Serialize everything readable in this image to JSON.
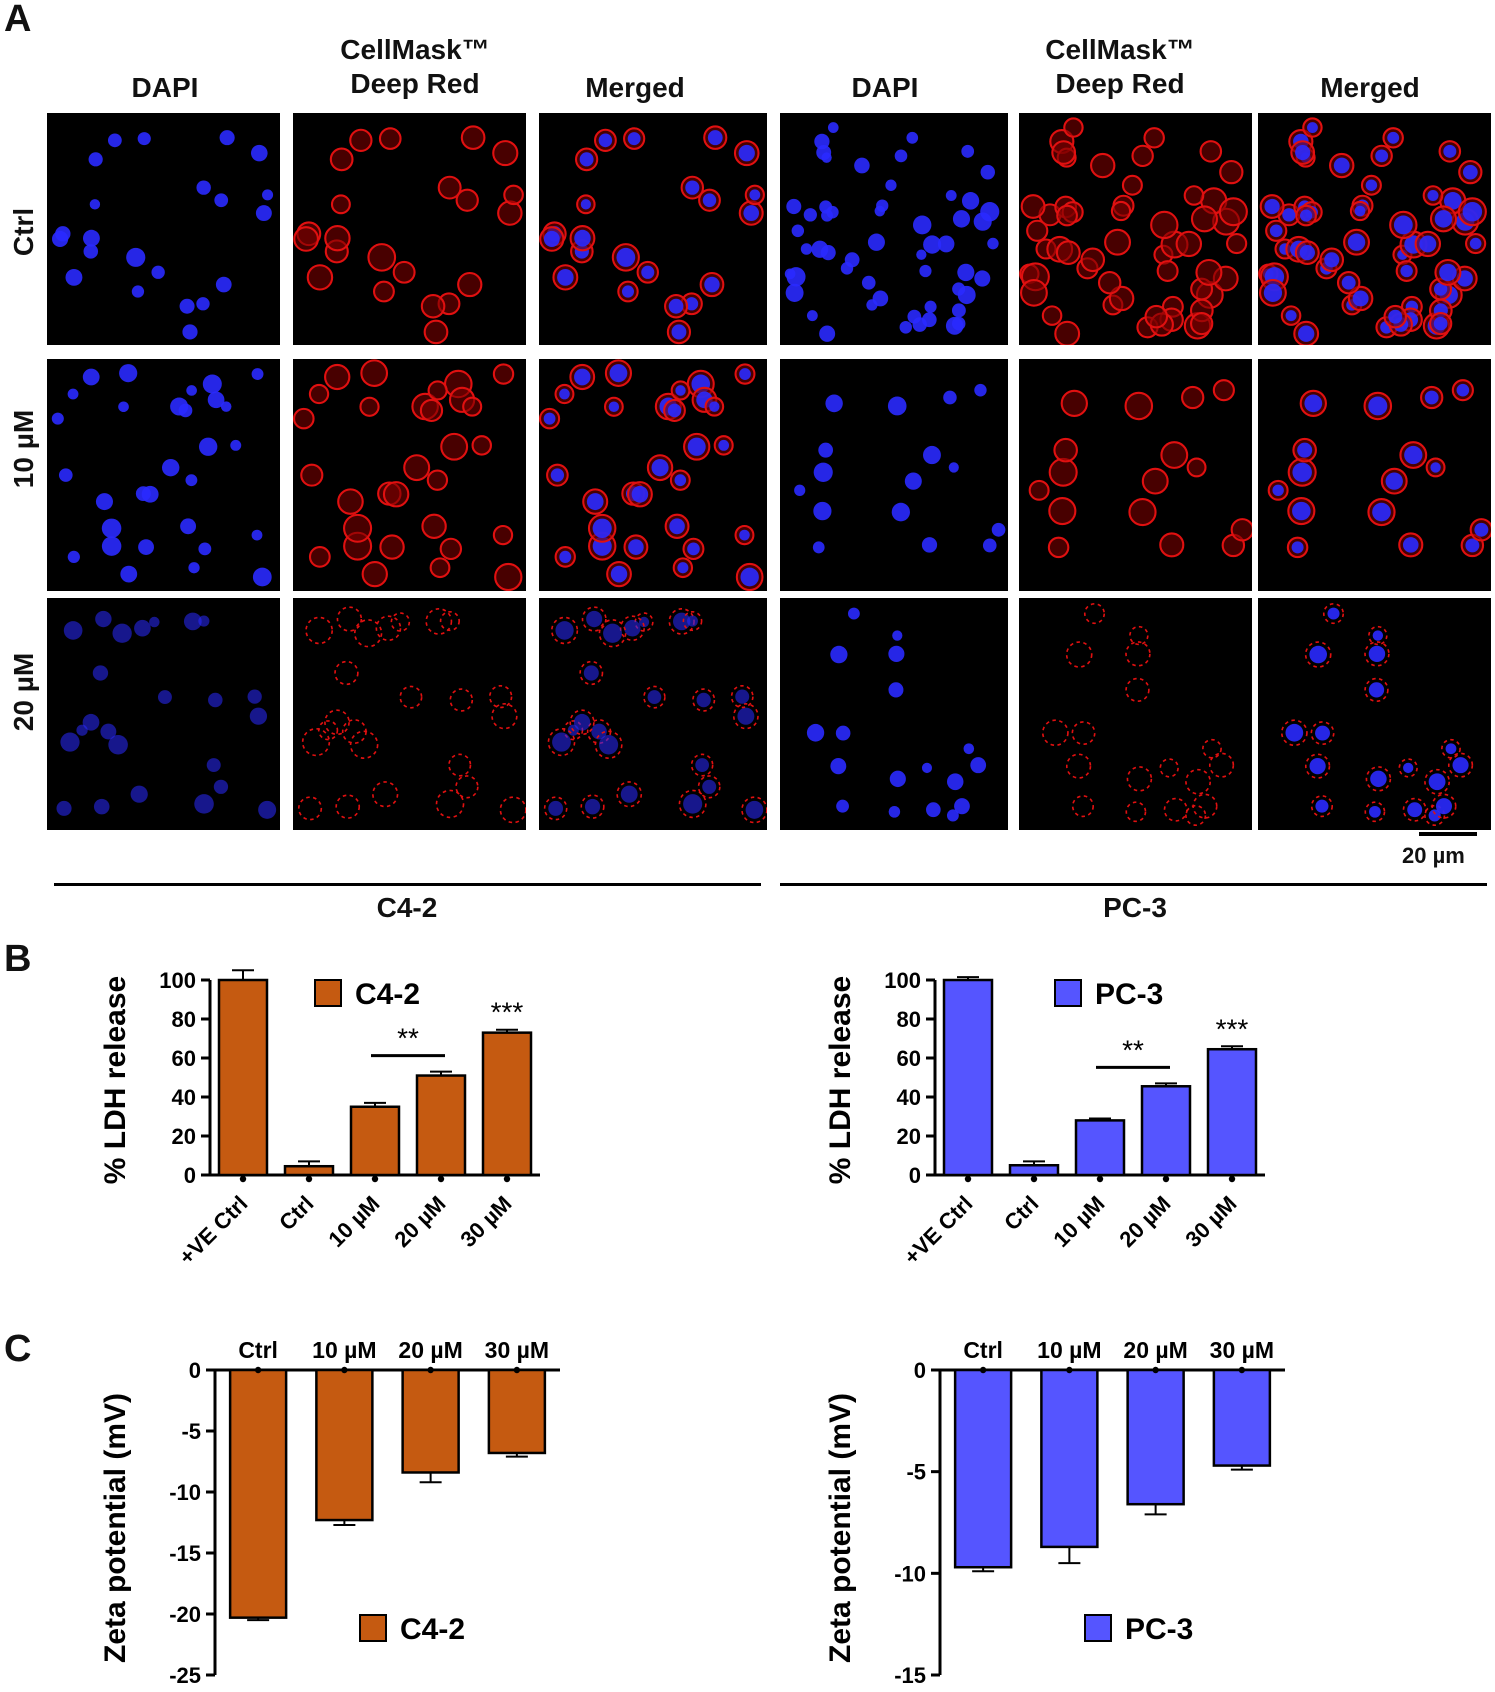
{
  "panel_labels": {
    "a": "A",
    "b": "B",
    "c": "C"
  },
  "panel_a": {
    "column_headers": [
      [
        "DAPI"
      ],
      [
        "CellMask™",
        "Deep Red"
      ],
      [
        "Merged"
      ],
      [
        "DAPI"
      ],
      [
        "CellMask™",
        "Deep Red"
      ],
      [
        "Merged"
      ]
    ],
    "row_labels": [
      "Ctrl",
      "10 µM",
      "20 µM"
    ],
    "groups": [
      "C4-2",
      "PC-3"
    ],
    "scale_bar": "20 µm",
    "colors": {
      "dapi": "#2a2aff",
      "cellmask": "#e01010",
      "background": "#000000"
    }
  },
  "chart_data": [
    {
      "id": "ldh-c42",
      "type": "bar",
      "ylabel": "% LDH release",
      "categories": [
        "+VE Ctrl",
        "Ctrl",
        "10 µM",
        "20 µM",
        "30 µM"
      ],
      "values": [
        100,
        4.5,
        35,
        51,
        73
      ],
      "errors": [
        5,
        2.5,
        2,
        2,
        1.5
      ],
      "ylim": [
        0,
        100
      ],
      "yticks": [
        0,
        20,
        40,
        60,
        80,
        100
      ],
      "legend": "C4-2",
      "color": "#c55a11",
      "annotations": [
        {
          "text": "**",
          "bracket": [
            "10 µM",
            "20 µM"
          ]
        },
        {
          "text": "***",
          "category": "30 µM"
        }
      ]
    },
    {
      "id": "ldh-pc3",
      "type": "bar",
      "ylabel": "% LDH release",
      "categories": [
        "+VE Ctrl",
        "Ctrl",
        "10 µM",
        "20 µM",
        "30 µM"
      ],
      "values": [
        100,
        5,
        28,
        45.5,
        64.5
      ],
      "errors": [
        1.5,
        2,
        1,
        1.5,
        1.5
      ],
      "ylim": [
        0,
        100
      ],
      "yticks": [
        0,
        20,
        40,
        60,
        80,
        100
      ],
      "legend": "PC-3",
      "color": "#5555ff",
      "annotations": [
        {
          "text": "**",
          "bracket": [
            "10 µM",
            "20 µM"
          ]
        },
        {
          "text": "***",
          "category": "30 µM"
        }
      ]
    },
    {
      "id": "zeta-c42",
      "type": "bar",
      "ylabel": "Zeta potential (mV)",
      "categories": [
        "Ctrl",
        "10 µM",
        "20 µM",
        "30 µM"
      ],
      "values": [
        -20.3,
        -12.3,
        -8.4,
        -6.8
      ],
      "errors": [
        0.2,
        0.4,
        0.8,
        0.3
      ],
      "ylim": [
        -25,
        0
      ],
      "yticks": [
        0,
        -5,
        -10,
        -15,
        -20,
        -25
      ],
      "legend": "C4-2",
      "color": "#c55a11"
    },
    {
      "id": "zeta-pc3",
      "type": "bar",
      "ylabel": "Zeta potential (mV)",
      "categories": [
        "Ctrl",
        "10 µM",
        "20 µM",
        "30 µM"
      ],
      "values": [
        -9.7,
        -8.7,
        -6.6,
        -4.7
      ],
      "errors": [
        0.2,
        0.8,
        0.5,
        0.2
      ],
      "ylim": [
        -15,
        0
      ],
      "yticks": [
        0,
        -5,
        -10,
        -15
      ],
      "legend": "PC-3",
      "color": "#5555ff"
    }
  ]
}
